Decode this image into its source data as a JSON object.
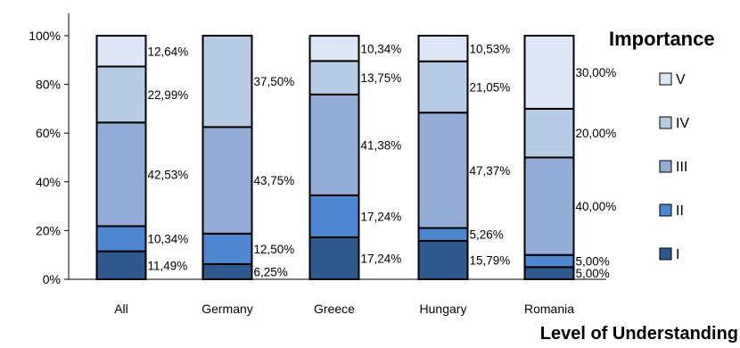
{
  "chart_data": {
    "type": "bar",
    "stacked": true,
    "percent_stacked": true,
    "categories": [
      "All",
      "Germany",
      "Greece",
      "Hungary",
      "Romania"
    ],
    "series": [
      {
        "name": "I",
        "color": "#2E5A8E",
        "values": [
          11.49,
          6.25,
          17.24,
          15.79,
          5.0
        ],
        "labels": [
          "11,49%",
          "6,25%",
          "17,24%",
          "15,79%",
          "5,00%"
        ]
      },
      {
        "name": "II",
        "color": "#4F86D0",
        "values": [
          10.34,
          12.5,
          17.24,
          5.26,
          5.0
        ],
        "labels": [
          "10,34%",
          "12,50%",
          "17,24%",
          "5,26%",
          "5,00%"
        ]
      },
      {
        "name": "III",
        "color": "#93ADD7",
        "values": [
          42.53,
          43.75,
          41.38,
          47.37,
          40.0
        ],
        "labels": [
          "42,53%",
          "43,75%",
          "41,38%",
          "47,37%",
          "40,00%"
        ]
      },
      {
        "name": "IV",
        "color": "#B7CBE6",
        "values": [
          22.99,
          37.5,
          13.75,
          21.05,
          20.0
        ],
        "labels": [
          "22,99%",
          "37,50%",
          "13,75%",
          "21,05%",
          "20,00%"
        ]
      },
      {
        "name": "V",
        "color": "#DCE6F4",
        "values": [
          12.64,
          0,
          10.34,
          10.53,
          30.0
        ],
        "labels": [
          "12,64%",
          "",
          "10,34%",
          "10,53%",
          "30,00%"
        ]
      }
    ],
    "title": "",
    "xlabel": "Level of Understanding",
    "ylabel": "",
    "ylim": [
      0,
      100
    ],
    "yticks": [
      "0%",
      "20%",
      "40%",
      "60%",
      "80%",
      "100%"
    ],
    "legend": {
      "title": "Importance",
      "placement": "right",
      "order": [
        "V",
        "IV",
        "III",
        "II",
        "I"
      ]
    },
    "grid": false
  }
}
